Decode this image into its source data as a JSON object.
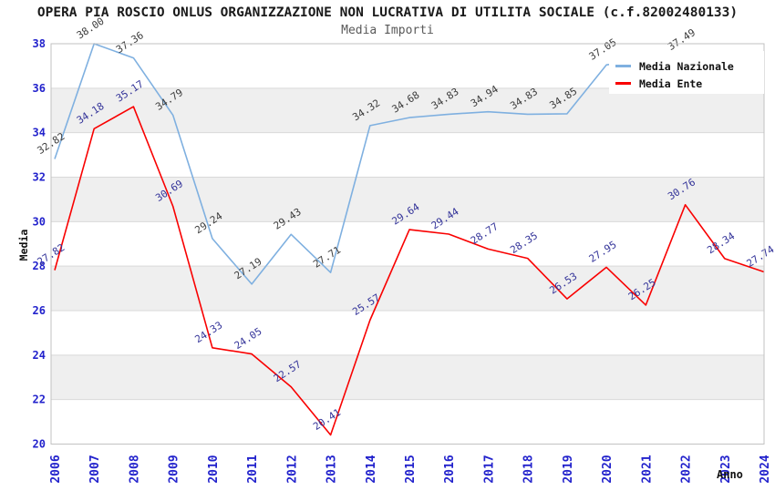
{
  "page": {
    "title": "OPERA PIA ROSCIO ONLUS ORGANIZZAZIONE NON LUCRATIVA DI UTILITA SOCIALE (c.f.82002480133)",
    "subtitle": "Media Importi"
  },
  "legend": {
    "items": [
      {
        "label": "Media Nazionale",
        "color": "#7fb0e0"
      },
      {
        "label": "Media Ente",
        "color": "#f90000"
      }
    ]
  },
  "chart_data": {
    "type": "line",
    "title": "OPERA PIA ROSCIO ONLUS ORGANIZZAZIONE NON LUCRATIVA DI UTILITA SOCIALE (c.f.82002480133)",
    "subtitle": "Media Importi",
    "xlabel": "Anno",
    "ylabel": "Media",
    "ylim": [
      20,
      38
    ],
    "ytick_step": 2,
    "grid": "horizontal gridlines with alternating gray bands",
    "legend_position": "top-right",
    "categories": [
      "2006",
      "2007",
      "2008",
      "2009",
      "2010",
      "2011",
      "2012",
      "2013",
      "2014",
      "2015",
      "2016",
      "2017",
      "2018",
      "2019",
      "2020",
      "2021",
      "2022",
      "2023",
      "2024"
    ],
    "series": [
      {
        "name": "Media Nazionale",
        "color": "#7fb0e0",
        "label_color": "#3c3c3c",
        "values": [
          32.82,
          38.0,
          37.36,
          34.79,
          29.24,
          27.19,
          29.43,
          27.71,
          34.32,
          34.68,
          34.83,
          34.94,
          34.83,
          34.85,
          37.05,
          null,
          37.49,
          null,
          null
        ]
      },
      {
        "name": "Media Ente",
        "color": "#f90000",
        "label_color": "#333399",
        "values": [
          27.82,
          34.18,
          35.17,
          30.69,
          24.33,
          24.05,
          22.57,
          20.41,
          25.57,
          29.64,
          29.44,
          28.77,
          28.35,
          26.53,
          27.95,
          26.25,
          30.76,
          28.34,
          27.74
        ]
      }
    ],
    "colors": {
      "band": "#efefef",
      "gridline": "#d9d9d9",
      "plot_border": "#c2c2c2",
      "axis_tick_labels": "#2222cc"
    }
  }
}
